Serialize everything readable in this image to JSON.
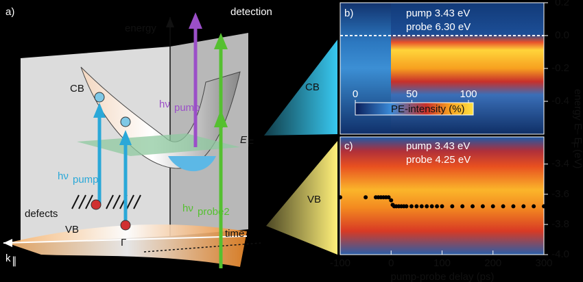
{
  "figure": {
    "panel_a": {
      "label": "a)",
      "energy": "energy",
      "detection": "detection",
      "cb": "CB",
      "vb": "VB",
      "hv": "hν",
      "pump_sub": "pump",
      "probe2_sub": "probe2",
      "ef": "E",
      "ef_sub": "F",
      "defects": "defects",
      "gamma": "Γ",
      "k": "k",
      "k_sub": "∥",
      "time": "time"
    },
    "callouts": {
      "cb": "CB",
      "vb": "VB"
    },
    "panel_b": {
      "label": "b)",
      "pump": "pump 3.43 eV",
      "probe": "probe 6.30 eV",
      "ylim": [
        -0.6,
        0.2
      ],
      "yticks": [
        0.2,
        {
          "value": 0,
          "label": "0.0"
        },
        -0.2,
        -0.4
      ],
      "colorbar": {
        "label": "PE-intensity (%)",
        "lim": [
          0,
          100
        ],
        "ticks": [
          0,
          50,
          100
        ]
      }
    },
    "panel_c": {
      "label": "c)",
      "pump": "pump 3.43 eV",
      "probe": "probe 4.25 eV",
      "ylim": [
        -4.0,
        -3.22
      ],
      "yticks": [
        -3.4,
        -3.6,
        -3.8,
        {
          "value": -4.0,
          "label": "-4.0"
        }
      ],
      "x": [
        -100,
        -50,
        -30,
        -25,
        -20,
        -15,
        -10,
        -5,
        0,
        3,
        6,
        10,
        15,
        20,
        25,
        30,
        40,
        50,
        60,
        70,
        80,
        90,
        100,
        120,
        140,
        160,
        180,
        200,
        220,
        240,
        260,
        280,
        300
      ],
      "y": [
        -3.62,
        -3.62,
        -3.62,
        -3.62,
        -3.62,
        -3.62,
        -3.62,
        -3.62,
        -3.64,
        -3.67,
        -3.68,
        -3.68,
        -3.68,
        -3.68,
        -3.68,
        -3.68,
        -3.68,
        -3.68,
        -3.68,
        -3.68,
        -3.68,
        -3.68,
        -3.68,
        -3.68,
        -3.68,
        -3.68,
        -3.68,
        -3.68,
        -3.68,
        -3.68,
        -3.68,
        -3.68,
        -3.68
      ]
    },
    "xaxis": {
      "label": "pump-probe delay (ps)",
      "xlim": [
        -100,
        300
      ],
      "xticks": [
        -100,
        0,
        100,
        200,
        300
      ]
    },
    "yaxis": {
      "label_1": "energy E",
      "label_2": "– E",
      "label_sub": "F",
      "label_3": "(eV)"
    }
  }
}
